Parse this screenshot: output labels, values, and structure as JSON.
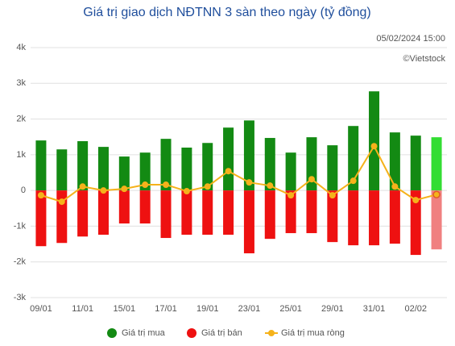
{
  "chart_data": {
    "type": "bar",
    "title": "Giá trị giao dịch NĐTNN 3 sàn theo ngày (tỷ đồng)",
    "timestamp": "05/02/2024 15:00",
    "source": "©Vietstock",
    "categories": [
      "09/01",
      null,
      "11/01",
      null,
      "15/01",
      null,
      "17/01",
      null,
      "19/01",
      null,
      "23/01",
      null,
      "25/01",
      null,
      "29/01",
      null,
      "31/01",
      null,
      "02/02",
      null
    ],
    "series": [
      {
        "name": "Giá trị mua",
        "type": "bar",
        "color": "#138a13",
        "latest_color": "#33dd33",
        "values": [
          1400,
          1150,
          1380,
          1220,
          950,
          1060,
          1445,
          1200,
          1330,
          1760,
          1960,
          1470,
          1060,
          1490,
          1265,
          1805,
          2775,
          1625,
          1535,
          1490
        ]
      },
      {
        "name": "Giá trị bán",
        "type": "bar",
        "color": "#ee1111",
        "latest_color": "#f08080",
        "values": [
          -1560,
          -1470,
          -1290,
          -1240,
          -925,
          -925,
          -1330,
          -1240,
          -1240,
          -1240,
          -1760,
          -1355,
          -1195,
          -1195,
          -1445,
          -1535,
          -1535,
          -1490,
          -1805,
          -1650
        ]
      },
      {
        "name": "Giá trị mua ròng",
        "type": "line",
        "color": "#f5b21b",
        "values": [
          -135,
          -315,
          110,
          0,
          45,
          160,
          160,
          -20,
          110,
          540,
          225,
          135,
          -135,
          315,
          -135,
          270,
          1240,
          110,
          -270,
          -115
        ]
      }
    ],
    "ylim": [
      -3000,
      4000
    ],
    "yticks": [
      {
        "value": -3000,
        "label": "-3k"
      },
      {
        "value": -2000,
        "label": "-2k"
      },
      {
        "value": -1000,
        "label": "-1k"
      },
      0,
      {
        "value": 1000,
        "label": "1k"
      },
      {
        "value": 2000,
        "label": "2k"
      },
      {
        "value": 3000,
        "label": "3k"
      },
      {
        "value": 4000,
        "label": "4k"
      }
    ],
    "grid": true,
    "legend": "bottom"
  }
}
